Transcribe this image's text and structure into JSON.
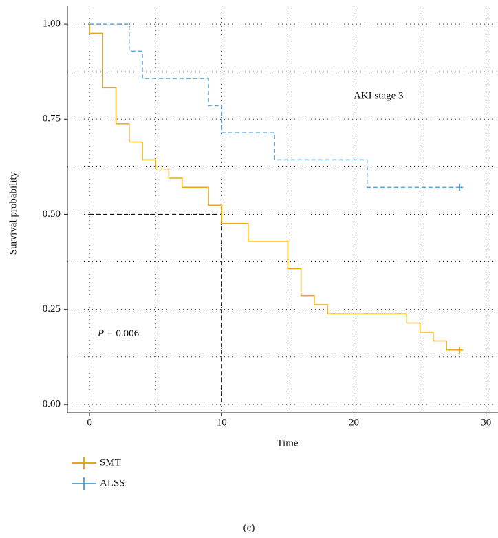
{
  "chart_data": {
    "type": "step",
    "xlabel": "Time",
    "ylabel": "Survival probability",
    "annotation": "AKI stage 3",
    "p_value": {
      "symbol": "P",
      "text": "= 0.006"
    },
    "caption": "(c)",
    "xlim": [
      -1.67,
      30.9
    ],
    "ylim": [
      -0.022,
      1.049
    ],
    "xticks": [
      0,
      10,
      20,
      30
    ],
    "yticks": [
      {
        "value": 0,
        "label": "0.00"
      },
      {
        "value": 0.25,
        "label": "0.25"
      },
      {
        "value": 0.5,
        "label": "0.50"
      },
      {
        "value": 0.75,
        "label": "0.75"
      },
      {
        "value": 1,
        "label": "1.00"
      }
    ],
    "minor_xticks": [
      5,
      15,
      25
    ],
    "minor_yticks": [
      0.125,
      0.375,
      0.625,
      0.875
    ],
    "grid": true,
    "median": {
      "x": 10,
      "y": 0.5
    },
    "series": [
      {
        "name": "SMT",
        "color": "#e6a817",
        "dash": false,
        "x": [
          0,
          0,
          1,
          2,
          3,
          4,
          5,
          6,
          7,
          9,
          10,
          12,
          15,
          16,
          17,
          18,
          24,
          25,
          26,
          27,
          28
        ],
        "values": [
          1,
          0.976,
          0.833,
          0.738,
          0.69,
          0.643,
          0.619,
          0.595,
          0.571,
          0.524,
          0.476,
          0.429,
          0.357,
          0.286,
          0.262,
          0.238,
          0.214,
          0.19,
          0.167,
          0.143,
          0.143
        ]
      },
      {
        "name": "ALSS",
        "color": "#5aa5d8",
        "dash": true,
        "x": [
          0,
          3,
          4,
          9,
          10,
          14,
          21,
          28
        ],
        "values": [
          1,
          0.929,
          0.857,
          0.786,
          0.714,
          0.643,
          0.571,
          0.571
        ]
      }
    ]
  }
}
